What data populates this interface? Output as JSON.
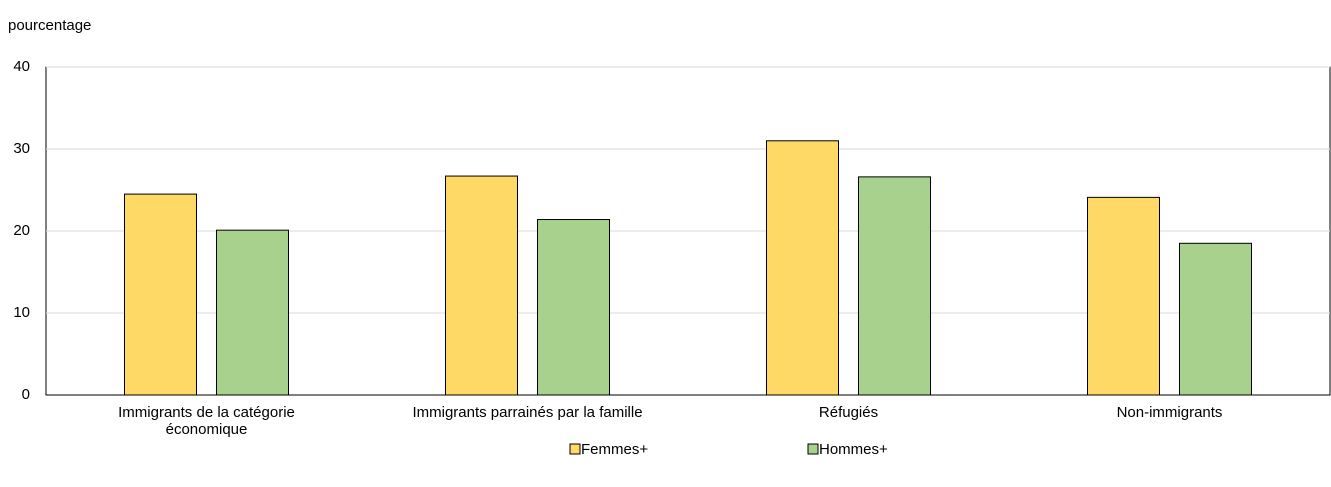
{
  "chart_data": {
    "type": "bar",
    "y_label": "pourcentage",
    "categories": [
      "Immigrants de la catégorie\néconomique",
      "Immigrants parrainés par la famille",
      "Réfugiés",
      "Non-immigrants"
    ],
    "series": [
      {
        "name": "Femmes+",
        "color": "#fed966",
        "values": [
          24.5,
          26.7,
          31.0,
          24.1
        ]
      },
      {
        "name": "Hommes+",
        "color": "#a9d18e",
        "values": [
          20.1,
          21.4,
          26.6,
          18.5
        ]
      }
    ],
    "ylim": [
      0,
      40
    ],
    "yticks": [
      0,
      10,
      20,
      30,
      40
    ],
    "grid": true,
    "legend": "bottom"
  }
}
